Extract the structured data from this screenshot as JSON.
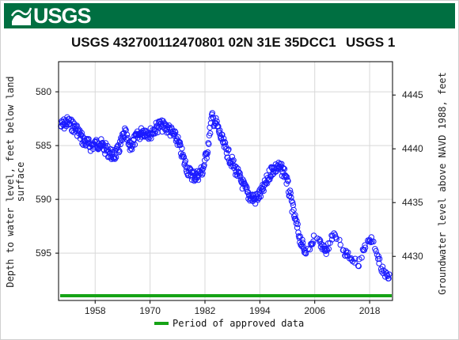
{
  "header": {
    "logo_text": "USGS",
    "title": "USGS 432700112470801 02N 31E 35DCC1",
    "title_suffix": "USGS 1"
  },
  "chart_data": {
    "type": "scatter",
    "title": "USGS 432700112470801 02N 31E 35DCC1",
    "ylabel_left": [
      "Depth to water level, feet below land",
      "surface"
    ],
    "ylabel_right": "Groundwater level above NAVD 1988, feet",
    "x_range": [
      1950,
      2023
    ],
    "y_left_range": [
      577.2,
      599.4
    ],
    "y_left_inverted": true,
    "y_left_ticks": [
      580,
      585,
      590,
      595
    ],
    "y_right_ticks": [
      4445,
      4440,
      4435,
      4430
    ],
    "x_ticks": [
      1958,
      1970,
      1982,
      1994,
      2006,
      2018
    ],
    "grid": true,
    "series_color": "#1a1aff",
    "keypoints": [
      [
        1950.5,
        583.2
      ],
      [
        1952,
        582.8
      ],
      [
        1954,
        583.5
      ],
      [
        1955.5,
        584.6
      ],
      [
        1957,
        585.0
      ],
      [
        1959,
        584.8
      ],
      [
        1960.5,
        585.4
      ],
      [
        1962,
        586.0
      ],
      [
        1963,
        585.5
      ],
      [
        1964.5,
        583.8
      ],
      [
        1965.5,
        585.2
      ],
      [
        1967,
        584.3
      ],
      [
        1968.5,
        583.6
      ],
      [
        1970,
        583.9
      ],
      [
        1972,
        583.1
      ],
      [
        1974,
        583.4
      ],
      [
        1976,
        584.5
      ],
      [
        1977.5,
        586.5
      ],
      [
        1978.5,
        587.5
      ],
      [
        1980,
        587.9
      ],
      [
        1981.5,
        587.3
      ],
      [
        1982.5,
        585.5
      ],
      [
        1983.5,
        582.4
      ],
      [
        1984.5,
        583.0
      ],
      [
        1986,
        584.8
      ],
      [
        1987.5,
        586.2
      ],
      [
        1989,
        587.5
      ],
      [
        1990.5,
        588.8
      ],
      [
        1991.5,
        589.6
      ],
      [
        1993,
        590.0
      ],
      [
        1994.5,
        589.3
      ],
      [
        1995.5,
        588.3
      ],
      [
        1996.5,
        587.3
      ],
      [
        1998,
        587.0
      ],
      [
        1999.5,
        587.5
      ],
      [
        2000.5,
        589.5
      ],
      [
        2001.5,
        591.5
      ],
      [
        2002.5,
        593.2
      ],
      [
        2003.5,
        594.6
      ],
      [
        2004.5,
        594.8
      ],
      [
        2006,
        593.5
      ],
      [
        2007,
        594.0
      ],
      [
        2008.5,
        594.8
      ],
      [
        2010,
        593.3
      ],
      [
        2011.5,
        594.0
      ],
      [
        2012.5,
        595.0
      ],
      [
        2013.5,
        595.2
      ],
      [
        2014.5,
        595.6
      ],
      [
        2015.5,
        596.2
      ],
      [
        2016.5,
        594.8
      ],
      [
        2017.5,
        594.0
      ],
      [
        2018.5,
        593.8
      ],
      [
        2019.5,
        595.0
      ],
      [
        2020.5,
        596.3
      ],
      [
        2021.5,
        597.0
      ],
      [
        2022.5,
        597.2
      ]
    ],
    "period_bar": {
      "label": "Period of approved data",
      "color": "#16a316",
      "x_start": 1950,
      "x_end": 2023
    }
  }
}
